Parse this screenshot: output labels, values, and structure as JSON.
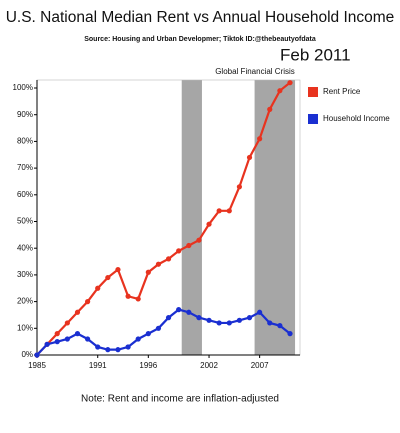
{
  "chart_data": {
    "type": "line",
    "title": "U.S. National Median Rent vs Annual Household Income",
    "subtitle": "Source: Housing and Urban Developmer;  Tiktok ID:@thebeautyofdata",
    "date_label": "Feb 2011",
    "annotation": "Global Financial Crisis",
    "note": "Note: Rent and income are inflation-adjusted",
    "x": [
      1985,
      1986,
      1987,
      1988,
      1989,
      1990,
      1991,
      1992,
      1993,
      1994,
      1995,
      1996,
      1997,
      1998,
      1999,
      2000,
      2001,
      2002,
      2003,
      2004,
      2005,
      2006,
      2007,
      2008,
      2009,
      2010
    ],
    "series": [
      {
        "name": "Rent Price",
        "color": "#e8331f",
        "values": [
          0,
          4,
          8,
          12,
          16,
          20,
          25,
          29,
          32,
          22,
          21,
          31,
          34,
          36,
          39,
          41,
          43,
          49,
          54,
          54,
          63,
          74,
          81,
          92,
          99,
          102
        ]
      },
      {
        "name": "Household Income",
        "color": "#1a2fd1",
        "values": [
          0,
          4,
          5,
          6,
          8,
          6,
          3,
          2,
          2,
          3,
          6,
          8,
          10,
          14,
          17,
          16,
          14,
          13,
          12,
          12,
          13,
          14,
          16,
          12,
          11,
          8
        ]
      }
    ],
    "shaded_regions": [
      [
        1999.3,
        2001.3
      ],
      [
        2006.5,
        2010.5
      ]
    ],
    "xlim": [
      1985,
      2010
    ],
    "xticks": [
      1985,
      1991,
      1996,
      2002,
      2007
    ],
    "ylim": [
      0,
      103
    ],
    "yticks": [
      {
        "value": 0,
        "label": "0%"
      },
      {
        "value": 10,
        "label": "10%"
      },
      {
        "value": 20,
        "label": "20%"
      },
      {
        "value": 30,
        "label": "30%"
      },
      {
        "value": 40,
        "label": "40%"
      },
      {
        "value": 50,
        "label": "50%"
      },
      {
        "value": 60,
        "label": "60%"
      },
      {
        "value": 70,
        "label": "70%"
      },
      {
        "value": 80,
        "label": "80%"
      },
      {
        "value": 90,
        "label": "90%"
      },
      {
        "value": 100,
        "label": "100%"
      }
    ],
    "legend": "right"
  }
}
